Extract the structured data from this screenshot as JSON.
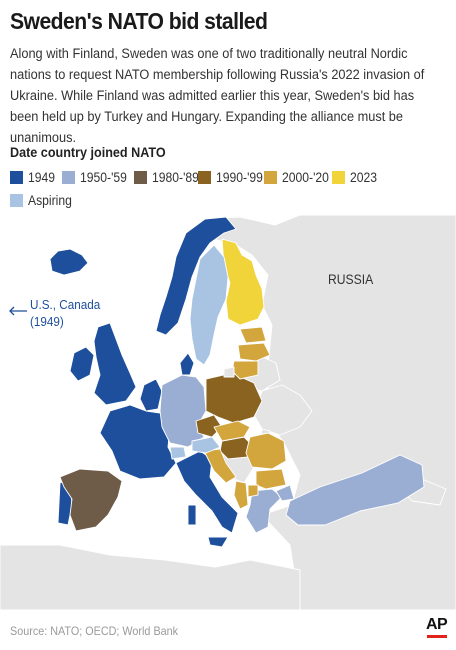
{
  "header": {
    "title": "Sweden's NATO bid stalled",
    "description": "Along with Finland, Sweden was one of two traditionally neutral Nordic nations to request NATO membership following Russia's 2022 invasion of Ukraine. While Finland was admitted earlier this year, Sweden's bid has been held up by Turkey and Hungary. Expanding the alliance must be unanimous."
  },
  "legend": {
    "title": "Date country joined NATO",
    "items": [
      {
        "label": "1949",
        "color": "#1d4f9c"
      },
      {
        "label": "1950-'59",
        "color": "#9aaed3"
      },
      {
        "label": "1980-'89",
        "color": "#6e5c48"
      },
      {
        "label": "1990-'99",
        "color": "#8a6320"
      },
      {
        "label": "2000-'20",
        "color": "#d3a53d"
      },
      {
        "label": "2023",
        "color": "#f1d33a"
      },
      {
        "label": "Aspiring",
        "color": "#a9c3e3"
      }
    ]
  },
  "map": {
    "labels": {
      "russia": "RUSSIA",
      "us_canada": "U.S., Canada",
      "us_canada_year": "(1949)"
    },
    "colors": {
      "land_non_member": "#e4e4e4",
      "border": "#ffffff",
      "water": "#ffffff"
    }
  },
  "footer": {
    "source": "Source: NATO; OECD; World Bank",
    "logo": "AP"
  }
}
